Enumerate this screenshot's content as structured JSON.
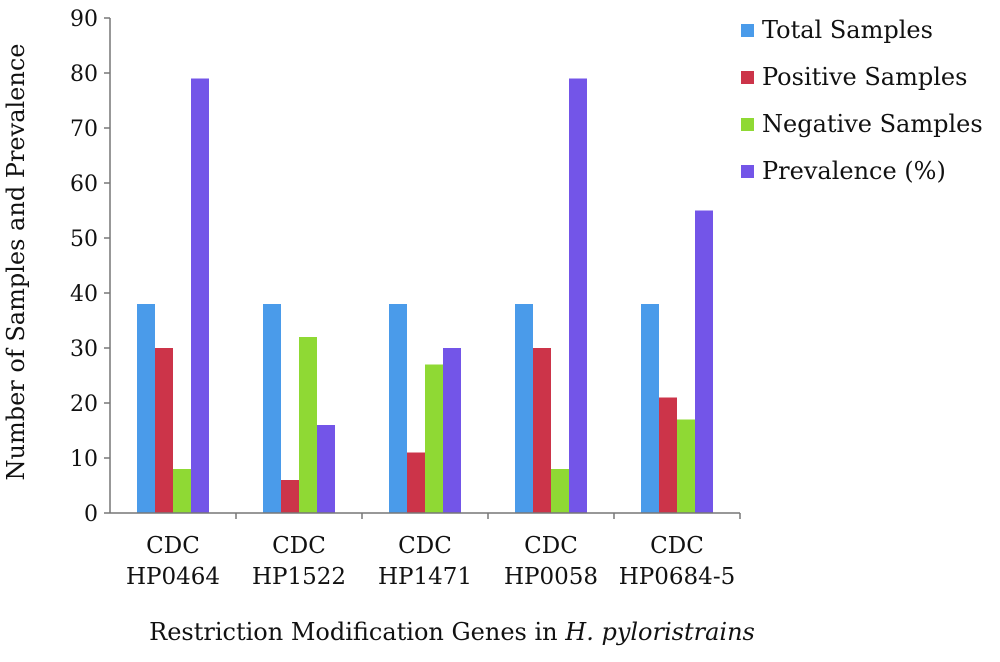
{
  "chart_data": {
    "type": "bar",
    "title": "",
    "xlabel": "Restriction Modification Genes in ",
    "xlabel_italic": "H. pyloristrains",
    "ylabel": "Number of Samples and Prevalence",
    "ylim": [
      0,
      90
    ],
    "yticks": [
      "0",
      "10",
      "20",
      "30",
      "40",
      "50",
      "60",
      "70",
      "80",
      "90"
    ],
    "grid": false,
    "legend_position": "top-right",
    "categories": [
      [
        "CDC",
        "HP0464"
      ],
      [
        "CDC",
        "HP1522"
      ],
      [
        "CDC",
        "HP1471"
      ],
      [
        "CDC",
        "HP0058"
      ],
      [
        "CDC",
        "HP0684-5"
      ]
    ],
    "series": [
      {
        "name": "Total Samples",
        "color": "#4a9bea",
        "values": [
          38,
          38,
          38,
          38,
          38
        ]
      },
      {
        "name": "Positive Samples",
        "color": "#cc3449",
        "values": [
          30,
          6,
          11,
          30,
          21
        ]
      },
      {
        "name": "Negative Samples",
        "color": "#8fd934",
        "values": [
          8,
          32,
          27,
          8,
          17
        ]
      },
      {
        "name": "Prevalence (%)",
        "color": "#7355e8",
        "values": [
          79,
          16,
          30,
          79,
          55
        ]
      }
    ]
  }
}
